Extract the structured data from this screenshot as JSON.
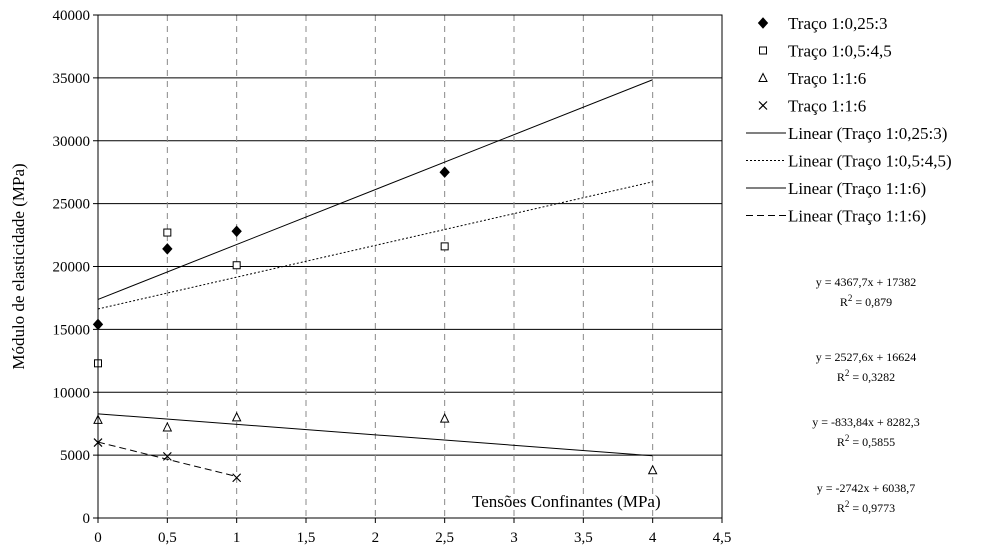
{
  "chart_data": {
    "type": "scatter",
    "title": "",
    "xlabel": "Tensões Confinantes (MPa)",
    "ylabel": "Módulo de elasticidade (MPa)",
    "xlim": [
      0,
      4.5
    ],
    "ylim": [
      0,
      40000
    ],
    "x_ticks": [
      "0",
      "0,5",
      "1",
      "1,5",
      "2",
      "2,5",
      "3",
      "3,5",
      "4",
      "4,5"
    ],
    "y_ticks": [
      "0",
      "5000",
      "10000",
      "15000",
      "20000",
      "25000",
      "30000",
      "35000",
      "40000"
    ],
    "grid": {
      "horizontal": "solid",
      "vertical": "dashed"
    },
    "legend_position": "right",
    "series": [
      {
        "name": "Traço 1:0,25:3",
        "marker": "diamond-filled",
        "x": [
          0,
          0.5,
          1,
          2.5
        ],
        "y": [
          15400,
          21400,
          22800,
          27500
        ]
      },
      {
        "name": "Traço 1:0,5:4,5",
        "marker": "square-open",
        "x": [
          0,
          0.5,
          1,
          2.5
        ],
        "y": [
          12300,
          22700,
          20100,
          21600
        ]
      },
      {
        "name": "Traço 1:1:6",
        "marker": "triangle-open",
        "x": [
          0,
          0.5,
          1,
          2.5,
          4
        ],
        "y": [
          7800,
          7200,
          8000,
          7900,
          3800
        ]
      },
      {
        "name": "Traço 1:1:6",
        "marker": "x",
        "x": [
          0,
          0.5,
          1
        ],
        "y": [
          6000,
          4900,
          3200
        ]
      }
    ],
    "trendlines": [
      {
        "name": "Linear (Traço 1:0,25:3)",
        "style": "solid",
        "slope": 4367.7,
        "intercept": 17382,
        "x_range": [
          0,
          4
        ],
        "equation": "y = 4367,7x + 17382",
        "r2_value": "0,879"
      },
      {
        "name": "Linear (Traço 1:0,5:4,5)",
        "style": "dotted",
        "slope": 2527.6,
        "intercept": 16624,
        "x_range": [
          0,
          4
        ],
        "equation": "y = 2527,6x + 16624",
        "r2_value": "0,3282"
      },
      {
        "name": "Linear (Traço 1:1:6)",
        "style": "solid",
        "slope": -833.84,
        "intercept": 8282.3,
        "x_range": [
          0,
          4
        ],
        "equation": "y = -833,84x + 8282,3",
        "r2_value": "0,5855"
      },
      {
        "name": "Linear (Traço 1:1:6)",
        "style": "dashed",
        "slope": -2742,
        "intercept": 6038.7,
        "x_range": [
          0,
          1
        ],
        "equation": "y = -2742x + 6038,7",
        "r2_value": "0,9773"
      }
    ],
    "r2_prefix": "R",
    "r2_exponent": "2",
    "r2_sep": " = "
  }
}
